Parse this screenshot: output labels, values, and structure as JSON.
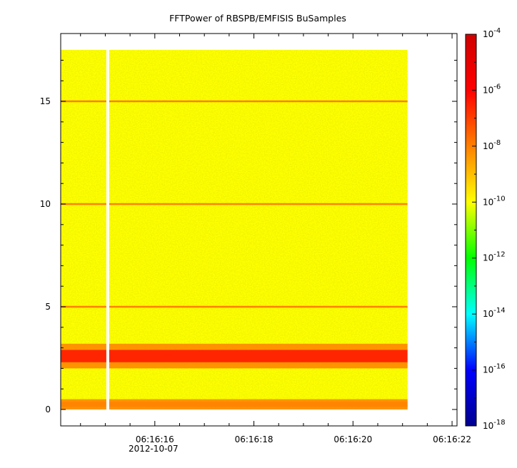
{
  "chart_data": {
    "type": "heatmap",
    "title": "FFTPower of RBSPB/EMFISIS  BuSamples",
    "xlabel": "",
    "ylabel": "",
    "x_range": [
      "06:16:14.1",
      "06:16:22.1"
    ],
    "data_x_range": [
      "06:16:14.1",
      "06:16:21.1"
    ],
    "y_range": [
      -0.8,
      18.3
    ],
    "data_y_range": [
      0,
      17.5
    ],
    "x_ticks": [
      {
        "time": "06:16:16",
        "label": "06:16:16",
        "sublabel": "2012-10-07"
      },
      {
        "time": "06:16:18",
        "label": "06:16:18",
        "sublabel": ""
      },
      {
        "time": "06:16:20",
        "label": "06:16:20",
        "sublabel": ""
      },
      {
        "time": "06:16:22",
        "label": "06:16:22",
        "sublabel": ""
      }
    ],
    "y_ticks": [
      0,
      5,
      10,
      15
    ],
    "colorbar": {
      "scale": "log",
      "range": [
        1e-18,
        0.0001
      ],
      "tick_exponents": [
        -4,
        -6,
        -8,
        -10,
        -12,
        -14,
        -16,
        -18
      ],
      "base_label": "10",
      "colors": [
        "#00008f",
        "#0000ff",
        "#00ffff",
        "#00ff00",
        "#ffff00",
        "#ff8000",
        "#ff0000",
        "#d00000"
      ]
    },
    "background_level": 1e-10,
    "data_gap_time": "06:16:15.05",
    "features": [
      {
        "kind": "band",
        "y_range": [
          2.0,
          3.2
        ],
        "level": 1e-06,
        "description_label": ""
      },
      {
        "kind": "band",
        "y_range": [
          0,
          0.5
        ],
        "level": 1e-08,
        "description_label": ""
      },
      {
        "kind": "line",
        "y": 5,
        "level": 1e-08
      },
      {
        "kind": "line",
        "y": 10,
        "level": 1e-08
      },
      {
        "kind": "line",
        "y": 15,
        "level": 1e-08
      }
    ]
  }
}
